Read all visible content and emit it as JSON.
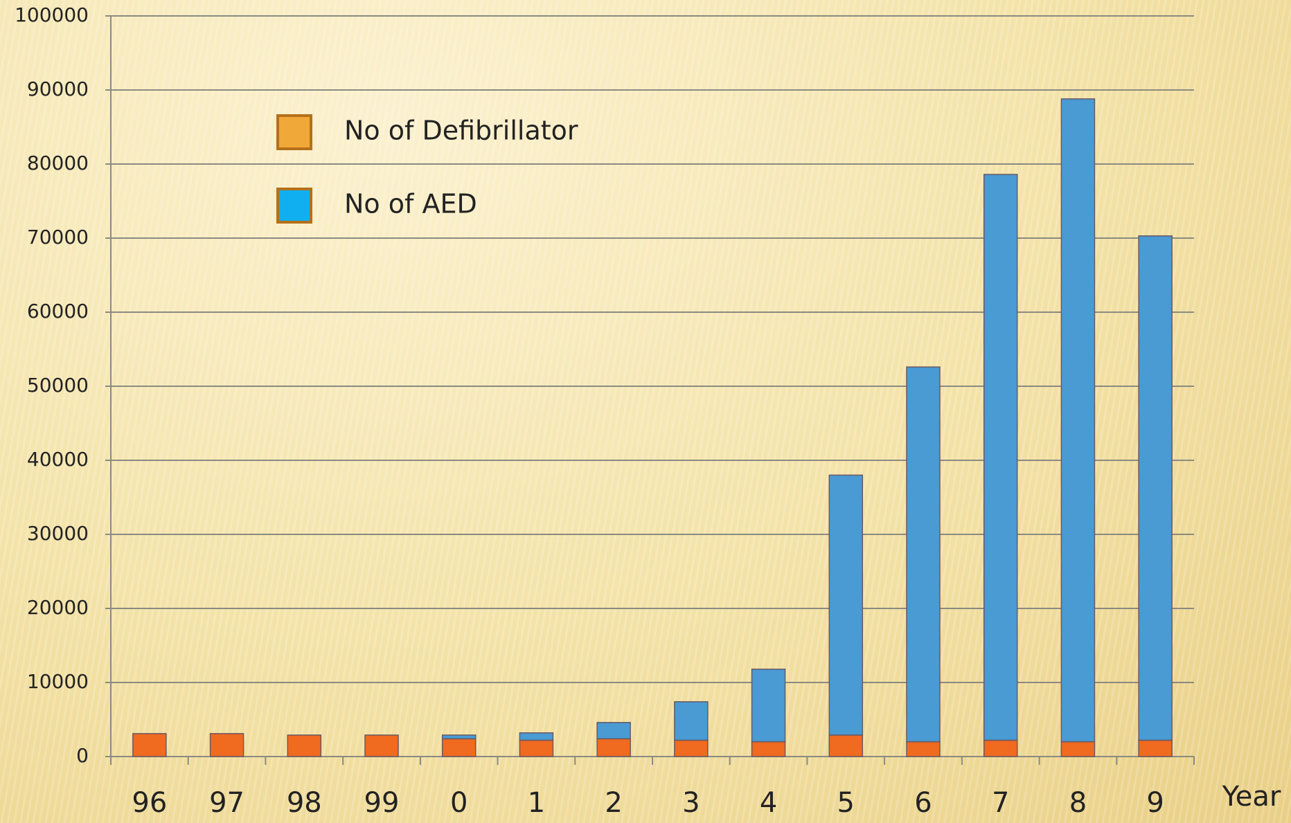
{
  "chart_data": {
    "type": "stacked_bar",
    "x_label": "Year",
    "categories": [
      "96",
      "97",
      "98",
      "99",
      "0",
      "1",
      "2",
      "3",
      "4",
      "5",
      "6",
      "7",
      "8",
      "9"
    ],
    "series": [
      {
        "name": "No of Defibrillator",
        "color": "#f06a20",
        "legend_color": "#f0a838",
        "values": [
          3100,
          3100,
          2900,
          2900,
          2400,
          2200,
          2400,
          2200,
          2000,
          2900,
          2000,
          2200,
          2000,
          2200
        ]
      },
      {
        "name": "No of AED",
        "color": "#4a9ad4",
        "legend_color": "#10b0f0",
        "values": [
          0,
          0,
          0,
          0,
          500,
          1000,
          2200,
          5200,
          9800,
          35100,
          50600,
          76400,
          86800,
          68100
        ]
      }
    ],
    "ylim": [
      0,
      100000
    ],
    "yticks": [
      0,
      10000,
      20000,
      30000,
      40000,
      50000,
      60000,
      70000,
      80000,
      90000,
      100000
    ],
    "grid": true
  }
}
